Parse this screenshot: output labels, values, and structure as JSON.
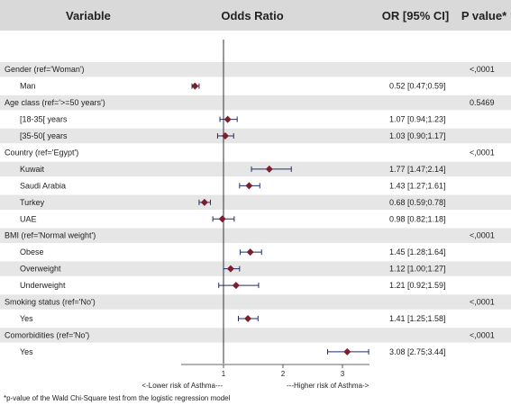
{
  "header": {
    "variable": "Variable",
    "odds_ratio": "Odds Ratio",
    "or_ci": "OR [95% CI]",
    "p_value": "P value*"
  },
  "axis": {
    "ticks": [
      "1",
      "2",
      "3"
    ],
    "left_caption": "<-Lower risk of Asthma---",
    "right_caption": "---Higher risk of Asthma->"
  },
  "footnote": "*p-value of the Wald Chi-Square test from the logistic regression model",
  "colors": {
    "header_bg": "#d9d9d9",
    "shade_bg": "#e6e6e6",
    "marker": "#7a1f2b",
    "whisker": "#1f2d6b",
    "reference_line": "#333333"
  },
  "chart_data": {
    "type": "forest",
    "x_scale": "linear",
    "xlim": [
      0.5,
      3.5
    ],
    "reference_value": 1,
    "rows": [
      {
        "kind": "group",
        "label": "Gender (ref='Woman')",
        "p": "<,0001",
        "shaded": true
      },
      {
        "kind": "item",
        "label": "Man",
        "or": 0.52,
        "lo": 0.47,
        "hi": 0.59,
        "ci_text": "0.52 [0.47;0.59]",
        "shaded": false
      },
      {
        "kind": "group",
        "label": "Age class (ref='>=50 years')",
        "p": "0.5469",
        "shaded": true
      },
      {
        "kind": "item",
        "label": "[18-35[ years",
        "or": 1.07,
        "lo": 0.94,
        "hi": 1.23,
        "ci_text": "1.07 [0.94;1.23]",
        "shaded": false
      },
      {
        "kind": "item",
        "label": "[35-50[ years",
        "or": 1.03,
        "lo": 0.9,
        "hi": 1.17,
        "ci_text": "1.03 [0.90;1.17]",
        "shaded": true
      },
      {
        "kind": "group",
        "label": "Country (ref='Egypt')",
        "p": "<,0001",
        "shaded": false
      },
      {
        "kind": "item",
        "label": "Kuwait",
        "or": 1.77,
        "lo": 1.47,
        "hi": 2.14,
        "ci_text": "1.77 [1.47;2.14]",
        "shaded": true
      },
      {
        "kind": "item",
        "label": "Saudi Arabia",
        "or": 1.43,
        "lo": 1.27,
        "hi": 1.61,
        "ci_text": "1.43 [1.27;1.61]",
        "shaded": false
      },
      {
        "kind": "item",
        "label": "Turkey",
        "or": 0.68,
        "lo": 0.59,
        "hi": 0.78,
        "ci_text": "0.68 [0.59;0.78]",
        "shaded": true
      },
      {
        "kind": "item",
        "label": "UAE",
        "or": 0.98,
        "lo": 0.82,
        "hi": 1.18,
        "ci_text": "0.98 [0.82;1.18]",
        "shaded": false
      },
      {
        "kind": "group",
        "label": "BMI (ref='Normal weight')",
        "p": "<,0001",
        "shaded": true
      },
      {
        "kind": "item",
        "label": "Obese",
        "or": 1.45,
        "lo": 1.28,
        "hi": 1.64,
        "ci_text": "1.45 [1.28;1.64]",
        "shaded": false
      },
      {
        "kind": "item",
        "label": "Overweight",
        "or": 1.12,
        "lo": 1.0,
        "hi": 1.27,
        "ci_text": "1.12 [1.00;1.27]",
        "shaded": true
      },
      {
        "kind": "item",
        "label": "Underweight",
        "or": 1.21,
        "lo": 0.92,
        "hi": 1.59,
        "ci_text": "1.21 [0.92;1.59]",
        "shaded": false
      },
      {
        "kind": "group",
        "label": "Smoking status (ref='No')",
        "p": "<,0001",
        "shaded": true
      },
      {
        "kind": "item",
        "label": "Yes",
        "or": 1.41,
        "lo": 1.25,
        "hi": 1.58,
        "ci_text": "1.41 [1.25;1.58]",
        "shaded": false
      },
      {
        "kind": "group",
        "label": "Comorbidities (ref='No')",
        "p": "<,0001",
        "shaded": true
      },
      {
        "kind": "item",
        "label": "Yes",
        "or": 3.08,
        "lo": 2.75,
        "hi": 3.44,
        "ci_text": "3.08 [2.75;3.44]",
        "shaded": false
      }
    ]
  }
}
